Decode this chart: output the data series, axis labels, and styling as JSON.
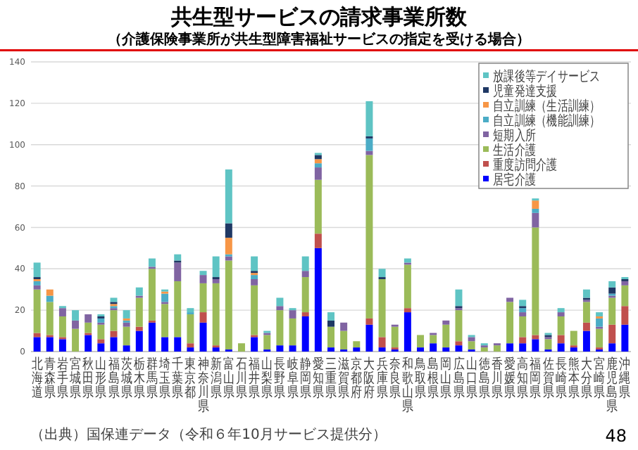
{
  "chart_data": {
    "type": "bar",
    "stacked": true,
    "title": "共生型サービスの請求事業所数",
    "subtitle": "（介護保険事業所が共生型障害福祉サービスの指定を受ける場合）",
    "categories": [
      "北海道",
      "青森県",
      "岩手県",
      "宮城県",
      "秋田県",
      "山形県",
      "福島県",
      "茨城県",
      "栃木県",
      "群馬県",
      "埼玉県",
      "千葉県",
      "東京都",
      "神奈川県",
      "新潟県",
      "富山県",
      "石川県",
      "福井県",
      "山梨県",
      "長野県",
      "岐阜県",
      "静岡県",
      "愛知県",
      "三重県",
      "滋賀県",
      "京都府",
      "大阪府",
      "兵庫県",
      "奈良県",
      "和歌山県",
      "鳥取県",
      "島根県",
      "岡山県",
      "広島県",
      "山口県",
      "徳島県",
      "香川県",
      "愛媛県",
      "高知県",
      "福岡県",
      "佐賀県",
      "長崎県",
      "熊本県",
      "大分県",
      "宮崎県",
      "鹿児島県",
      "沖縄県"
    ],
    "series": [
      {
        "name": "居宅介護",
        "color": "#0000ff",
        "values": [
          7,
          7,
          6,
          0,
          8,
          4,
          7,
          3,
          10,
          14,
          7,
          7,
          2,
          14,
          2,
          1,
          0,
          7,
          1,
          3,
          3,
          17,
          50,
          2,
          1,
          2,
          13,
          2,
          1,
          19,
          2,
          4,
          2,
          3,
          1,
          0,
          0,
          4,
          4,
          6,
          1,
          4,
          2,
          10,
          1,
          4,
          13
        ]
      },
      {
        "name": "重度訪問介護",
        "color": "#c0504d",
        "values": [
          2,
          1,
          1,
          0,
          1,
          2,
          3,
          0,
          2,
          1,
          0,
          0,
          2,
          5,
          1,
          0,
          0,
          1,
          0,
          0,
          0,
          2,
          7,
          0,
          0,
          0,
          3,
          5,
          1,
          2,
          0,
          0,
          0,
          2,
          0,
          0,
          0,
          0,
          3,
          2,
          0,
          4,
          1,
          4,
          1,
          9,
          9
        ]
      },
      {
        "name": "生活介護",
        "color": "#9bbb59",
        "values": [
          21,
          16,
          10,
          11,
          5,
          7,
          10,
          9,
          14,
          25,
          16,
          27,
          14,
          14,
          30,
          43,
          4,
          24,
          7,
          17,
          13,
          17,
          26,
          10,
          9,
          3,
          79,
          28,
          10,
          21,
          6,
          4,
          11,
          15,
          4,
          2,
          3,
          20,
          10,
          52,
          5,
          9,
          7,
          10,
          9,
          13,
          10
        ]
      },
      {
        "name": "短期入所",
        "color": "#8064a2",
        "values": [
          2,
          0,
          4,
          4,
          4,
          1,
          1,
          2,
          1,
          1,
          1,
          9,
          0,
          4,
          2,
          2,
          0,
          3,
          1,
          2,
          4,
          3,
          6,
          0,
          4,
          0,
          2,
          0,
          1,
          1,
          0,
          1,
          2,
          1,
          2,
          1,
          1,
          2,
          2,
          7,
          1,
          2,
          0,
          1,
          1,
          1,
          2
        ]
      },
      {
        "name": "自立訓練（機能訓練）",
        "color": "#4bacc6",
        "values": [
          2,
          3,
          0,
          0,
          0,
          2,
          1,
          1,
          0,
          0,
          4,
          0,
          1,
          0,
          0,
          1,
          0,
          2,
          0,
          0,
          0,
          0,
          2,
          0,
          0,
          0,
          6,
          0,
          0,
          0,
          0,
          0,
          0,
          0,
          0,
          0,
          0,
          0,
          2,
          2,
          0,
          0,
          0,
          0,
          4,
          1,
          0
        ]
      },
      {
        "name": "自立訓練（生活訓練）",
        "color": "#f79646",
        "values": [
          1,
          3,
          0,
          0,
          0,
          0,
          1,
          1,
          0,
          0,
          1,
          0,
          0,
          0,
          0,
          8,
          0,
          1,
          0,
          0,
          0,
          0,
          2,
          0,
          0,
          0,
          0,
          0,
          0,
          0,
          0,
          0,
          0,
          0,
          0,
          0,
          0,
          0,
          0,
          4,
          0,
          0,
          0,
          0,
          1,
          0,
          0
        ]
      },
      {
        "name": "児童発達支援",
        "color": "#1f3864",
        "values": [
          1,
          0,
          0,
          0,
          0,
          1,
          1,
          0,
          0,
          0,
          0,
          1,
          0,
          0,
          1,
          7,
          0,
          1,
          0,
          0,
          0,
          0,
          2,
          3,
          0,
          0,
          1,
          1,
          0,
          0,
          0,
          0,
          0,
          1,
          0,
          0,
          0,
          0,
          1,
          0,
          1,
          0,
          0,
          1,
          0,
          3,
          1
        ]
      },
      {
        "name": "放課後等デイサービス",
        "color": "#5fc4c4",
        "values": [
          7,
          0,
          1,
          5,
          0,
          1,
          2,
          4,
          4,
          4,
          1,
          3,
          2,
          2,
          10,
          26,
          0,
          7,
          1,
          4,
          1,
          7,
          1,
          4,
          0,
          0,
          17,
          4,
          0,
          2,
          0,
          0,
          0,
          8,
          1,
          1,
          0,
          0,
          3,
          1,
          1,
          2,
          0,
          4,
          2,
          3,
          1
        ]
      }
    ],
    "ylim": [
      0,
      140
    ],
    "yticks": [
      0,
      20,
      40,
      60,
      80,
      100,
      120,
      140
    ],
    "grid": "y",
    "legend": "top right",
    "annotations": [
      "（出典）国保連データ（令和６年10月サービス提供分）",
      "48"
    ]
  }
}
